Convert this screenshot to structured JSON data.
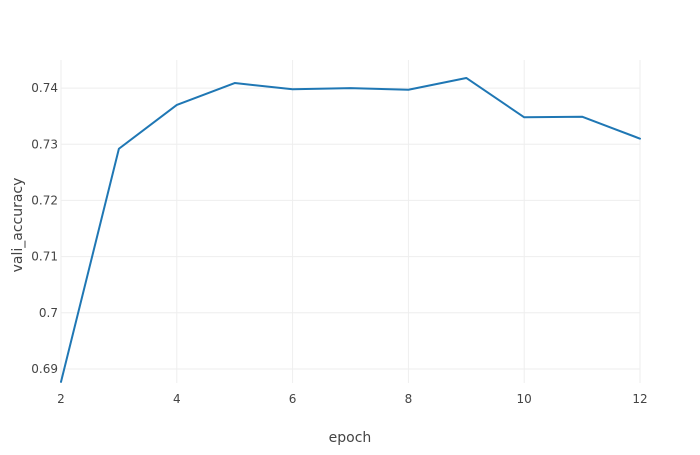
{
  "chart_data": {
    "type": "line",
    "title": "",
    "xlabel": "epoch",
    "ylabel": "vali_accuracy",
    "xlim": [
      2,
      12
    ],
    "ylim": [
      0.6875,
      0.745
    ],
    "x_ticks": [
      2,
      4,
      6,
      8,
      10,
      12
    ],
    "x_tick_labels": [
      "2",
      "4",
      "6",
      "8",
      "10",
      "12"
    ],
    "y_ticks": [
      0.69,
      0.7,
      0.71,
      0.72,
      0.73,
      0.74
    ],
    "y_tick_labels": [
      "0.69",
      "0.7",
      "0.71",
      "0.72",
      "0.73",
      "0.74"
    ],
    "grid": true,
    "series": [
      {
        "color": "#1f77b4",
        "x": [
          2,
          3,
          4,
          5,
          6,
          7,
          8,
          9,
          10,
          11,
          12
        ],
        "y": [
          0.6877,
          0.7292,
          0.737,
          0.7409,
          0.7398,
          0.74,
          0.7397,
          0.7418,
          0.7348,
          0.7349,
          0.731
        ]
      }
    ]
  }
}
